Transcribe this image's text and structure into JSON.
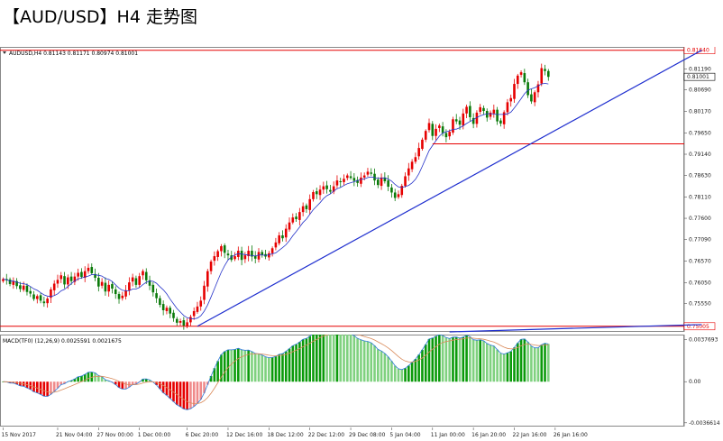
{
  "page": {
    "title": "【AUD/USD】H4 走势图"
  },
  "main_panel": {
    "header": "AUDUSD,H4  0.81143 0.81171 0.80974 0.81001",
    "price_axis": {
      "ticks": [
        {
          "label": "0.81190",
          "value": 0.8119
        },
        {
          "label": "0.80690",
          "value": 0.8069
        },
        {
          "label": "0.80170",
          "value": 0.8017
        },
        {
          "label": "0.79650",
          "value": 0.7965
        },
        {
          "label": "0.79140",
          "value": 0.7914
        },
        {
          "label": "0.78630",
          "value": 0.7863
        },
        {
          "label": "0.78110",
          "value": 0.7811
        },
        {
          "label": "0.77600",
          "value": 0.776
        },
        {
          "label": "0.77090",
          "value": 0.7709
        },
        {
          "label": "0.76570",
          "value": 0.7657
        },
        {
          "label": "0.76050",
          "value": 0.7605
        },
        {
          "label": "0.75550",
          "value": 0.7555
        }
      ],
      "min": 0.7487,
      "max": 0.8172
    },
    "horizontal_levels": [
      {
        "label": "0.81640",
        "value": 0.8164,
        "color": "#e60000",
        "boxed": true
      },
      {
        "label": "0.75005",
        "value": 0.75005,
        "color": "#e60000",
        "boxed": true
      },
      {
        "value": 0.7939,
        "color": "#e60000",
        "boxed": false
      }
    ],
    "current_price": {
      "label": "0.81001",
      "value": 0.81001
    },
    "trendlines": [
      {
        "from": [
          57,
          0.75005
        ],
        "to": [
          205,
          0.8164
        ],
        "color": "#1f2fcf"
      },
      {
        "from": [
          131,
          0.7487
        ],
        "to": [
          205,
          0.75045
        ],
        "color": "#1f2fcf"
      }
    ],
    "colors": {
      "up": "#e60000",
      "down": "#0a7a0a",
      "ma": "#2633c9"
    }
  },
  "macd_panel": {
    "header": "MACD(TF0) (12,26,9) 0.0025591 0.0021675",
    "ticks": [
      {
        "label": "0.0037693",
        "value": 0.0037693
      },
      {
        "label": "0.00",
        "value": 0
      },
      {
        "label": "-0.0036614",
        "value": -0.0036614
      }
    ],
    "min": -0.004,
    "max": 0.0042,
    "colors": {
      "hist_up": "#0a9a0a",
      "hist_down": "#e60000",
      "main": "#2d7ad6",
      "signal": "#d98a5a"
    }
  },
  "time_axis": {
    "labels": [
      {
        "label": "15 Nov 2017",
        "i": 0
      },
      {
        "label": "21 Nov 04:00",
        "i": 16
      },
      {
        "label": "27 Nov 00:00",
        "i": 28
      },
      {
        "label": "1 Dec 00:00",
        "i": 40
      },
      {
        "label": "6 Dec 20:00",
        "i": 54
      },
      {
        "label": "12 Dec 16:00",
        "i": 66
      },
      {
        "label": "18 Dec 12:00",
        "i": 78
      },
      {
        "label": "22 Dec 12:00",
        "i": 90
      },
      {
        "label": "29 Dec 08:00",
        "i": 102
      },
      {
        "label": "5 Jan 04:00",
        "i": 114
      },
      {
        "label": "11 Jan 00:00",
        "i": 126
      },
      {
        "label": "16 Jan 20:00",
        "i": 138
      },
      {
        "label": "22 Jan 16:00",
        "i": 150
      },
      {
        "label": "26 Jan 16:00",
        "i": 162
      }
    ]
  },
  "chart_data": {
    "type": "candlestick",
    "symbol": "AUDUSD",
    "timeframe": "H4",
    "ohlc_last": {
      "open": 0.81143,
      "high": 0.81171,
      "low": 0.80974,
      "close": 0.81001
    },
    "close_series": [
      0.7614,
      0.7611,
      0.7602,
      0.7609,
      0.7597,
      0.759,
      0.7598,
      0.7583,
      0.7579,
      0.7566,
      0.7573,
      0.7562,
      0.7556,
      0.7567,
      0.7589,
      0.7603,
      0.7612,
      0.7623,
      0.7601,
      0.7618,
      0.7609,
      0.762,
      0.7629,
      0.7619,
      0.7633,
      0.7641,
      0.7628,
      0.7617,
      0.7596,
      0.7607,
      0.7584,
      0.76,
      0.7591,
      0.7578,
      0.7566,
      0.7574,
      0.7587,
      0.7606,
      0.7618,
      0.76,
      0.7621,
      0.7633,
      0.7611,
      0.7598,
      0.7582,
      0.7568,
      0.7552,
      0.7539,
      0.7545,
      0.7531,
      0.752,
      0.7509,
      0.7513,
      0.7502,
      0.751,
      0.7523,
      0.7537,
      0.7548,
      0.7562,
      0.7598,
      0.7633,
      0.7656,
      0.7669,
      0.7681,
      0.7693,
      0.7677,
      0.7671,
      0.766,
      0.7669,
      0.7682,
      0.766,
      0.7671,
      0.7682,
      0.7668,
      0.7663,
      0.7679,
      0.7672,
      0.7668,
      0.7676,
      0.7688,
      0.7702,
      0.7719,
      0.7712,
      0.7735,
      0.775,
      0.7762,
      0.7758,
      0.7775,
      0.7789,
      0.7782,
      0.7806,
      0.7823,
      0.7818,
      0.7829,
      0.7837,
      0.783,
      0.7824,
      0.7837,
      0.7851,
      0.7847,
      0.7855,
      0.7863,
      0.7857,
      0.785,
      0.7845,
      0.7858,
      0.7863,
      0.7872,
      0.7867,
      0.7851,
      0.784,
      0.7858,
      0.7849,
      0.7836,
      0.7822,
      0.7809,
      0.7818,
      0.7838,
      0.7861,
      0.788,
      0.7896,
      0.7907,
      0.7929,
      0.7949,
      0.797,
      0.7989,
      0.7958,
      0.7975,
      0.7983,
      0.7965,
      0.7955,
      0.7968,
      0.7998,
      0.7993,
      0.7985,
      0.8012,
      0.8028,
      0.8003,
      0.7987,
      0.8014,
      0.8027,
      0.8018,
      0.8002,
      0.8014,
      0.8021,
      0.7993,
      0.7988,
      0.8015,
      0.8039,
      0.8049,
      0.8083,
      0.8103,
      0.8111,
      0.8087,
      0.8056,
      0.8041,
      0.8063,
      0.8082,
      0.8121,
      0.8114,
      0.81
    ],
    "macd": {
      "main": 0.0025591,
      "signal": 0.0021675
    }
  }
}
